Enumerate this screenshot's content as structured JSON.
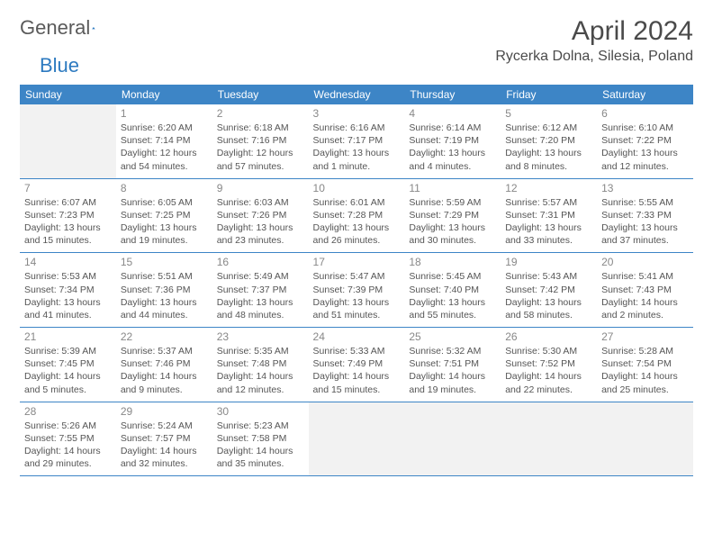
{
  "brand": {
    "text1": "General",
    "text2": "Blue"
  },
  "title": "April 2024",
  "location": "Rycerka Dolna, Silesia, Poland",
  "colors": {
    "header_bg": "#3d85c6",
    "header_text": "#ffffff",
    "cell_border": "#3d85c6",
    "empty_bg": "#f2f2f2",
    "daynum_color": "#888888",
    "body_text": "#555555",
    "brand_gray": "#5a5a5a",
    "brand_blue": "#2d7ac0"
  },
  "weekdays": [
    "Sunday",
    "Monday",
    "Tuesday",
    "Wednesday",
    "Thursday",
    "Friday",
    "Saturday"
  ],
  "layout": {
    "start_offset": 1,
    "rows": 5,
    "cols": 7
  },
  "days": [
    {
      "n": 1,
      "sr": "6:20 AM",
      "ss": "7:14 PM",
      "dl": "12 hours and 54 minutes."
    },
    {
      "n": 2,
      "sr": "6:18 AM",
      "ss": "7:16 PM",
      "dl": "12 hours and 57 minutes."
    },
    {
      "n": 3,
      "sr": "6:16 AM",
      "ss": "7:17 PM",
      "dl": "13 hours and 1 minute."
    },
    {
      "n": 4,
      "sr": "6:14 AM",
      "ss": "7:19 PM",
      "dl": "13 hours and 4 minutes."
    },
    {
      "n": 5,
      "sr": "6:12 AM",
      "ss": "7:20 PM",
      "dl": "13 hours and 8 minutes."
    },
    {
      "n": 6,
      "sr": "6:10 AM",
      "ss": "7:22 PM",
      "dl": "13 hours and 12 minutes."
    },
    {
      "n": 7,
      "sr": "6:07 AM",
      "ss": "7:23 PM",
      "dl": "13 hours and 15 minutes."
    },
    {
      "n": 8,
      "sr": "6:05 AM",
      "ss": "7:25 PM",
      "dl": "13 hours and 19 minutes."
    },
    {
      "n": 9,
      "sr": "6:03 AM",
      "ss": "7:26 PM",
      "dl": "13 hours and 23 minutes."
    },
    {
      "n": 10,
      "sr": "6:01 AM",
      "ss": "7:28 PM",
      "dl": "13 hours and 26 minutes."
    },
    {
      "n": 11,
      "sr": "5:59 AM",
      "ss": "7:29 PM",
      "dl": "13 hours and 30 minutes."
    },
    {
      "n": 12,
      "sr": "5:57 AM",
      "ss": "7:31 PM",
      "dl": "13 hours and 33 minutes."
    },
    {
      "n": 13,
      "sr": "5:55 AM",
      "ss": "7:33 PM",
      "dl": "13 hours and 37 minutes."
    },
    {
      "n": 14,
      "sr": "5:53 AM",
      "ss": "7:34 PM",
      "dl": "13 hours and 41 minutes."
    },
    {
      "n": 15,
      "sr": "5:51 AM",
      "ss": "7:36 PM",
      "dl": "13 hours and 44 minutes."
    },
    {
      "n": 16,
      "sr": "5:49 AM",
      "ss": "7:37 PM",
      "dl": "13 hours and 48 minutes."
    },
    {
      "n": 17,
      "sr": "5:47 AM",
      "ss": "7:39 PM",
      "dl": "13 hours and 51 minutes."
    },
    {
      "n": 18,
      "sr": "5:45 AM",
      "ss": "7:40 PM",
      "dl": "13 hours and 55 minutes."
    },
    {
      "n": 19,
      "sr": "5:43 AM",
      "ss": "7:42 PM",
      "dl": "13 hours and 58 minutes."
    },
    {
      "n": 20,
      "sr": "5:41 AM",
      "ss": "7:43 PM",
      "dl": "14 hours and 2 minutes."
    },
    {
      "n": 21,
      "sr": "5:39 AM",
      "ss": "7:45 PM",
      "dl": "14 hours and 5 minutes."
    },
    {
      "n": 22,
      "sr": "5:37 AM",
      "ss": "7:46 PM",
      "dl": "14 hours and 9 minutes."
    },
    {
      "n": 23,
      "sr": "5:35 AM",
      "ss": "7:48 PM",
      "dl": "14 hours and 12 minutes."
    },
    {
      "n": 24,
      "sr": "5:33 AM",
      "ss": "7:49 PM",
      "dl": "14 hours and 15 minutes."
    },
    {
      "n": 25,
      "sr": "5:32 AM",
      "ss": "7:51 PM",
      "dl": "14 hours and 19 minutes."
    },
    {
      "n": 26,
      "sr": "5:30 AM",
      "ss": "7:52 PM",
      "dl": "14 hours and 22 minutes."
    },
    {
      "n": 27,
      "sr": "5:28 AM",
      "ss": "7:54 PM",
      "dl": "14 hours and 25 minutes."
    },
    {
      "n": 28,
      "sr": "5:26 AM",
      "ss": "7:55 PM",
      "dl": "14 hours and 29 minutes."
    },
    {
      "n": 29,
      "sr": "5:24 AM",
      "ss": "7:57 PM",
      "dl": "14 hours and 32 minutes."
    },
    {
      "n": 30,
      "sr": "5:23 AM",
      "ss": "7:58 PM",
      "dl": "14 hours and 35 minutes."
    }
  ],
  "labels": {
    "sunrise_prefix": "Sunrise: ",
    "sunset_prefix": "Sunset: ",
    "daylight_prefix": "Daylight: "
  }
}
